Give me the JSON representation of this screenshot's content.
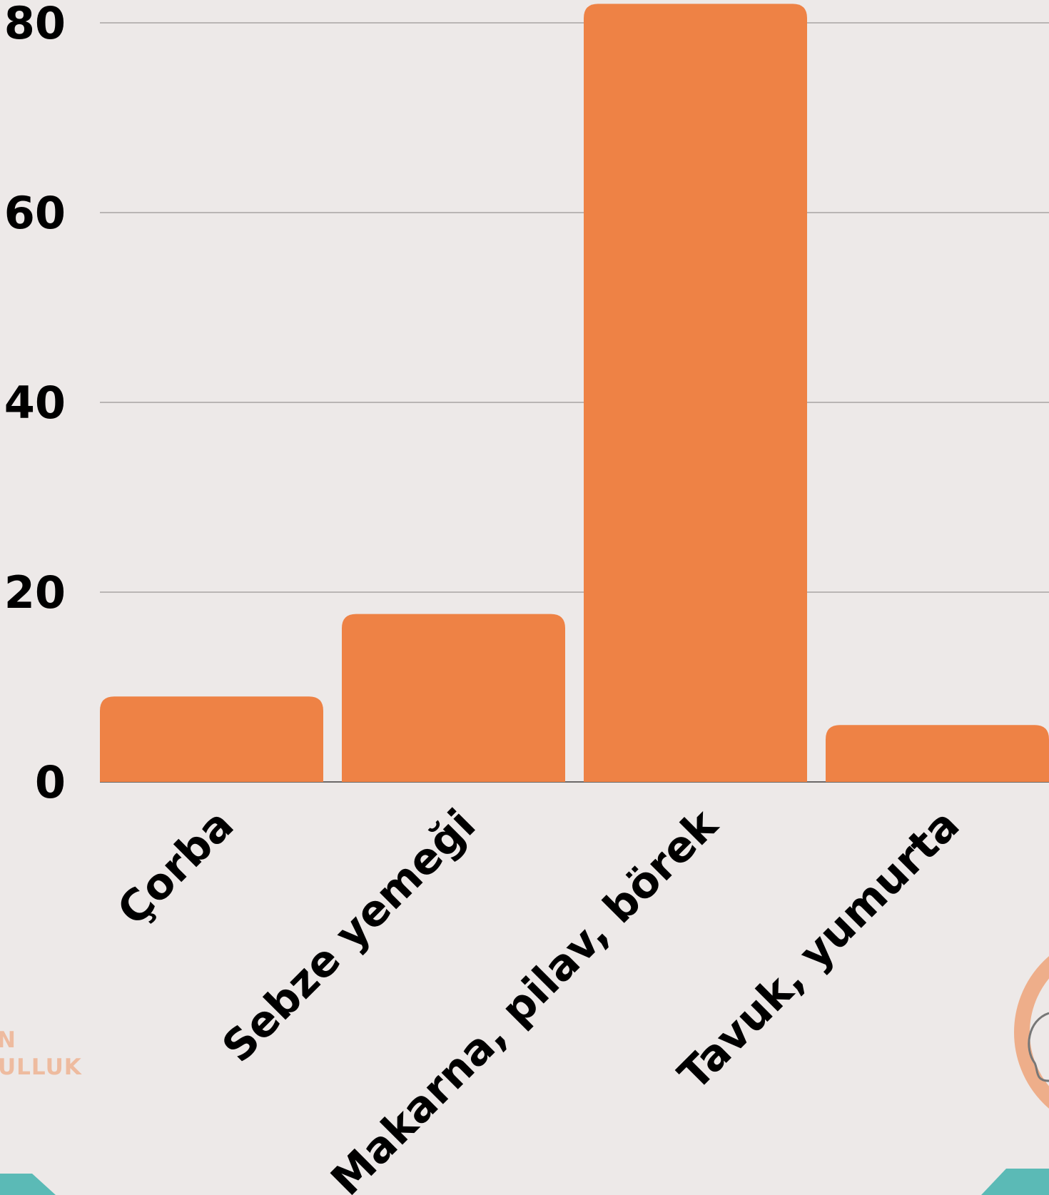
{
  "chart_data": {
    "type": "bar",
    "categories": [
      "Çorba",
      "Sebze yemeği",
      "Makarna, pilav, börek",
      "Tavuk, yumurta"
    ],
    "values": [
      9,
      17.7,
      83,
      6
    ],
    "ylim": [
      0,
      82
    ],
    "yticks": [
      "0",
      "20",
      "40",
      "60",
      "80"
    ],
    "grid": true,
    "bar_color": "#ee8245"
  },
  "logo": {
    "line1": "N",
    "line2": "ULLUK",
    "color": "#eebb9f",
    "badge_color": "#eeae8a"
  },
  "decor": {
    "teal": "#5bbab6"
  }
}
